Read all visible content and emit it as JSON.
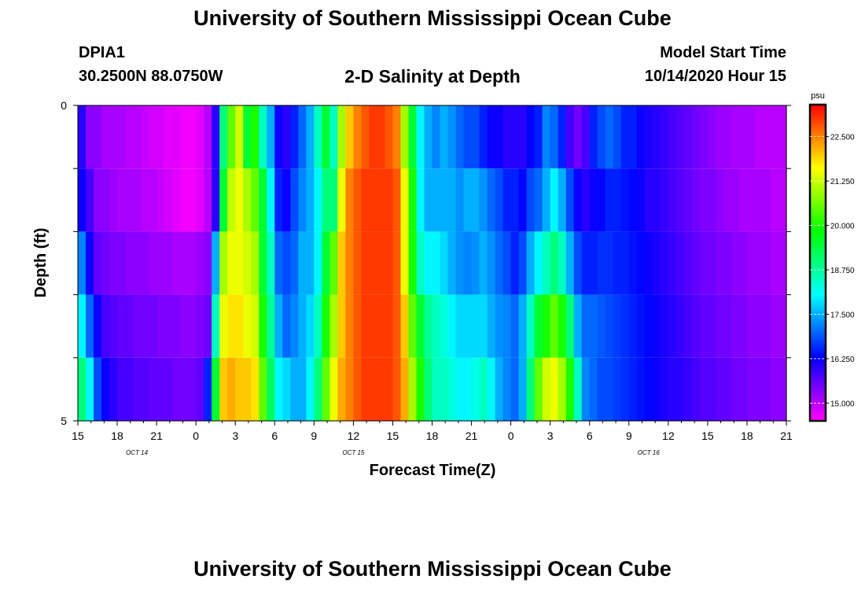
{
  "header": {
    "title": "University of Southern Mississippi Ocean Cube",
    "station_id": "DPIA1",
    "station_coords": "30.2500N 88.0750W",
    "chart_title": "2-D Salinity at Depth",
    "model_label": "Model Start Time",
    "model_date": "10/14/2020 Hour 15"
  },
  "footer": {
    "title": "University of Southern Mississippi Ocean Cube"
  },
  "chart_data": {
    "type": "heatmap",
    "xlabel": "Forecast Time(Z)",
    "ylabel": "Depth (ft)",
    "x_ticks": [
      "15",
      "18",
      "21",
      "0",
      "3",
      "6",
      "9",
      "12",
      "15",
      "18",
      "21",
      "0",
      "3",
      "6",
      "9",
      "12",
      "15",
      "18",
      "21"
    ],
    "date_labels": [
      {
        "label": "OCT 14",
        "hour_index": 4.5
      },
      {
        "label": "OCT 15",
        "hour_index": 21
      },
      {
        "label": "OCT 16",
        "hour_index": 43.5
      }
    ],
    "y_tick_labels": [
      "0",
      "5"
    ],
    "ylim": [
      0,
      5
    ],
    "y_ticks": [
      0,
      1,
      2,
      3,
      4,
      5
    ],
    "colorbar": {
      "unit": "psu",
      "min": 14.5,
      "max": 23.4,
      "labels": [
        "22.500",
        "21.250",
        "20.000",
        "18.750",
        "17.500",
        "16.250",
        "15.000"
      ],
      "label_values": [
        22.5,
        21.25,
        20.0,
        18.75,
        17.5,
        16.25,
        15.0
      ]
    },
    "hours_per_column": 1,
    "start_hour_label": "15",
    "rows": [
      {
        "depth_range": [
          0,
          1
        ],
        "values": [
          16.0,
          15.3,
          15.3,
          15.1,
          15.1,
          15.1,
          15.0,
          15.0,
          14.9,
          14.8,
          14.8,
          14.7,
          14.7,
          14.6,
          14.6,
          14.7,
          15.0,
          16.0,
          19.0,
          20.5,
          21.3,
          19.5,
          20.0,
          18.5,
          17.5,
          16.2,
          16.0,
          16.5,
          17.0,
          17.5,
          18.5,
          19.5,
          18.5,
          21.0,
          22.0,
          22.5,
          22.8,
          23.0,
          23.0,
          22.8,
          22.5,
          21.0,
          19.5,
          18.0,
          17.5,
          17.2,
          17.5,
          17.3,
          17.0,
          16.8,
          16.8,
          16.5,
          16.2,
          16.2,
          16.0,
          16.0,
          16.0,
          16.3,
          16.5,
          17.2,
          17.0,
          16.5,
          15.8,
          15.5,
          15.8,
          16.5,
          16.8,
          17.0,
          16.8,
          16.5,
          16.5,
          16.2,
          16.1,
          16.0,
          15.9,
          15.8,
          15.7,
          15.6,
          15.5,
          15.4,
          15.3,
          15.2,
          15.2,
          15.1,
          15.1,
          15.1,
          15.0,
          15.0,
          15.0,
          15.0
        ]
      },
      {
        "depth_range": [
          1,
          2
        ],
        "values": [
          16.2,
          15.8,
          15.3,
          15.3,
          15.2,
          15.1,
          15.1,
          15.1,
          15.0,
          15.0,
          14.9,
          14.8,
          14.7,
          14.6,
          14.6,
          14.7,
          15.0,
          16.0,
          19.5,
          21.2,
          21.5,
          21.0,
          20.5,
          19.5,
          18.0,
          16.5,
          16.2,
          16.8,
          17.2,
          17.5,
          18.0,
          19.0,
          19.0,
          21.5,
          22.5,
          22.8,
          23.0,
          23.0,
          23.0,
          23.0,
          22.8,
          21.5,
          20.0,
          18.0,
          17.5,
          17.5,
          17.5,
          17.5,
          17.3,
          17.5,
          17.5,
          17.3,
          17.0,
          16.8,
          16.5,
          16.5,
          16.3,
          16.8,
          17.0,
          17.5,
          18.0,
          17.5,
          16.8,
          16.2,
          16.0,
          16.2,
          16.3,
          16.5,
          16.5,
          16.4,
          16.3,
          16.2,
          16.0,
          16.0,
          15.9,
          15.8,
          15.7,
          15.6,
          15.5,
          15.4,
          15.4,
          15.3,
          15.2,
          15.2,
          15.1,
          15.1,
          15.1,
          15.1,
          15.0,
          15.0
        ]
      },
      {
        "depth_range": [
          2,
          3
        ],
        "values": [
          17.2,
          16.2,
          15.6,
          15.5,
          15.4,
          15.4,
          15.3,
          15.3,
          15.3,
          15.2,
          15.2,
          15.2,
          15.1,
          15.1,
          15.1,
          15.2,
          15.3,
          17.5,
          21.0,
          21.5,
          21.5,
          21.3,
          21.0,
          19.5,
          18.5,
          17.0,
          16.8,
          17.0,
          17.5,
          17.5,
          18.0,
          19.5,
          20.5,
          22.0,
          22.5,
          22.8,
          23.0,
          23.0,
          23.0,
          23.0,
          22.8,
          21.5,
          20.0,
          18.5,
          18.0,
          18.0,
          17.8,
          17.5,
          17.3,
          17.2,
          17.3,
          17.5,
          17.3,
          17.0,
          16.8,
          16.5,
          16.8,
          17.5,
          18.0,
          18.5,
          19.0,
          18.5,
          17.5,
          16.8,
          16.5,
          16.5,
          16.6,
          16.6,
          16.5,
          16.5,
          16.4,
          16.3,
          16.2,
          16.1,
          16.0,
          15.9,
          15.8,
          15.7,
          15.6,
          15.5,
          15.5,
          15.4,
          15.4,
          15.3,
          15.3,
          15.2,
          15.2,
          15.2,
          15.1,
          15.1
        ]
      },
      {
        "depth_range": [
          3,
          4
        ],
        "values": [
          18.0,
          17.0,
          16.2,
          15.8,
          15.7,
          15.6,
          15.6,
          15.5,
          15.5,
          15.5,
          15.4,
          15.4,
          15.4,
          15.3,
          15.3,
          15.4,
          15.5,
          18.5,
          21.5,
          21.8,
          21.8,
          21.5,
          21.3,
          20.0,
          18.8,
          17.5,
          17.0,
          17.2,
          17.5,
          17.8,
          18.5,
          20.0,
          21.0,
          22.0,
          22.5,
          22.8,
          23.0,
          23.0,
          23.0,
          23.0,
          22.8,
          22.0,
          20.5,
          19.5,
          18.8,
          18.5,
          18.3,
          18.0,
          17.8,
          17.8,
          17.8,
          17.8,
          17.5,
          17.3,
          17.2,
          17.0,
          17.5,
          18.5,
          19.5,
          20.0,
          20.5,
          20.0,
          19.0,
          17.5,
          17.0,
          17.0,
          16.9,
          16.8,
          16.7,
          16.6,
          16.5,
          16.4,
          16.3,
          16.2,
          16.1,
          16.0,
          15.9,
          15.8,
          15.7,
          15.6,
          15.6,
          15.5,
          15.5,
          15.4,
          15.4,
          15.3,
          15.3,
          15.3,
          15.2,
          15.2
        ]
      },
      {
        "depth_range": [
          4,
          5
        ],
        "values": [
          19.0,
          18.0,
          16.8,
          16.2,
          16.0,
          15.8,
          15.8,
          15.7,
          15.7,
          15.6,
          15.6,
          15.6,
          15.5,
          15.5,
          15.5,
          15.6,
          16.5,
          19.5,
          22.0,
          22.2,
          22.0,
          22.0,
          21.8,
          20.5,
          19.2,
          18.0,
          17.8,
          17.5,
          17.5,
          18.0,
          19.0,
          20.5,
          21.5,
          22.2,
          22.5,
          22.8,
          23.0,
          23.0,
          23.0,
          23.0,
          22.8,
          22.2,
          21.0,
          20.0,
          19.0,
          18.5,
          18.5,
          18.3,
          18.0,
          18.0,
          18.2,
          18.5,
          18.0,
          17.5,
          17.2,
          17.0,
          17.5,
          19.0,
          20.5,
          21.3,
          21.5,
          21.0,
          20.0,
          18.5,
          17.2,
          17.0,
          16.8,
          16.8,
          16.7,
          16.6,
          16.5,
          16.4,
          16.3,
          16.2,
          16.1,
          16.0,
          16.0,
          15.9,
          15.8,
          15.7,
          15.7,
          15.6,
          15.6,
          15.5,
          15.5,
          15.4,
          15.4,
          15.4,
          15.3,
          15.3
        ]
      },
      {
        "depth_range": [
          5,
          5
        ],
        "values": []
      }
    ]
  }
}
